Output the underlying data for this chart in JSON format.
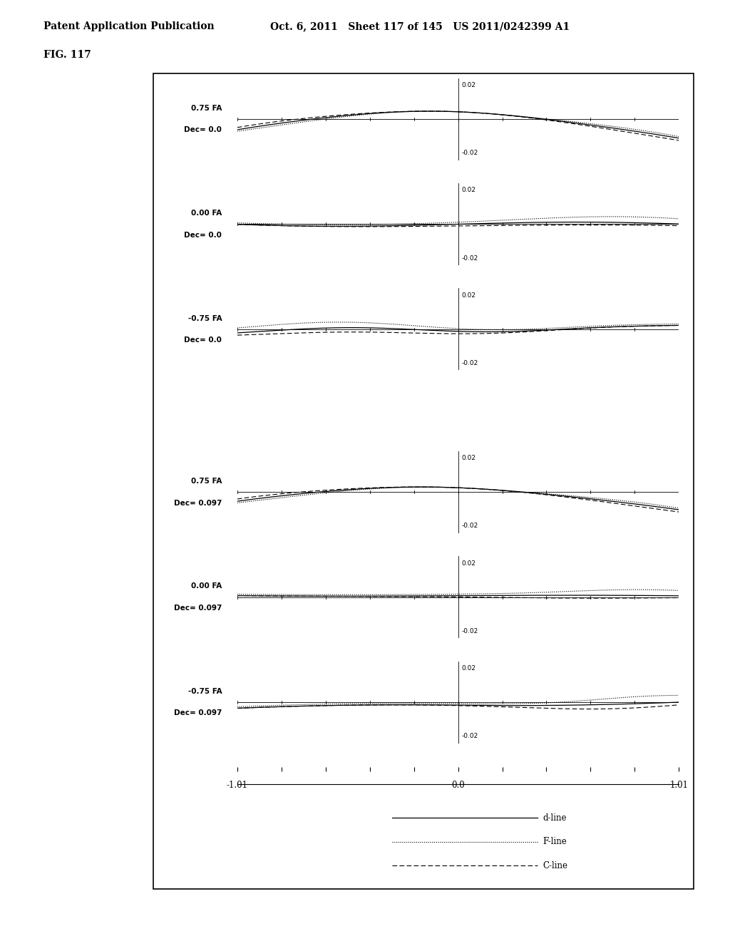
{
  "title_line1": "Patent Application Publication",
  "title_line2": "Oct. 6, 2011   Sheet 117 of 145   US 2011/0242399 A1",
  "fig_label": "FIG. 117",
  "xlim": [
    -1.01,
    1.01
  ],
  "ylim": [
    -0.028,
    0.028
  ],
  "subplots": [
    {
      "label1": "0.75 FA",
      "label2": "Dec= 0.0",
      "group": 0
    },
    {
      "label1": "0.00 FA",
      "label2": "Dec= 0.0",
      "group": 0
    },
    {
      "label1": "-0.75 FA",
      "label2": "Dec= 0.0",
      "group": 0
    },
    {
      "label1": "0.75 FA",
      "label2": "Dec= 0.097",
      "group": 1
    },
    {
      "label1": "0.00 FA",
      "label2": "Dec= 0.097",
      "group": 1
    },
    {
      "label1": "-0.75 FA",
      "label2": "Dec= 0.097",
      "group": 1
    }
  ],
  "background_color": "#ffffff",
  "legend_labels": [
    "d-line",
    "F-line",
    "C-line"
  ]
}
